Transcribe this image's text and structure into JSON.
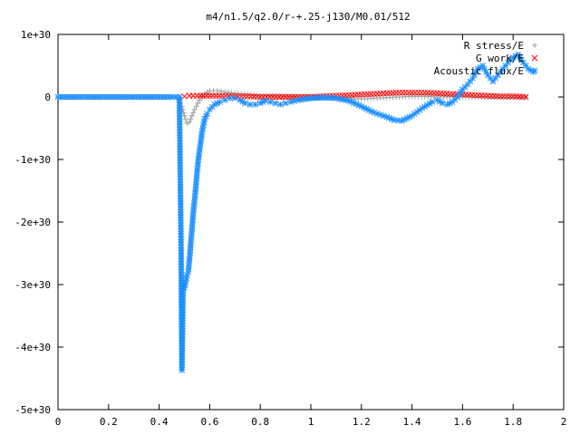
{
  "chart_data": {
    "type": "scatter",
    "title": "m4/n1.5/q2.0/r-+.25-j130/M0.01/512",
    "xlabel": "",
    "ylabel": "",
    "xlim": [
      0,
      2
    ],
    "ylim": [
      -5e+30,
      1e+30
    ],
    "xticks": [
      "0",
      "0.2",
      "0.4",
      "0.6",
      "0.8",
      "1",
      "1.2",
      "1.4",
      "1.6",
      "1.8",
      "2"
    ],
    "yticks": [
      "1e+30",
      "0",
      "-1e+30",
      "-2e+30",
      "-3e+30",
      "-4e+30",
      "-5e+30"
    ],
    "legend_position": "top-right",
    "grid": false,
    "series": [
      {
        "name": "R stress/E",
        "marker": "+",
        "color": "#a0a0a0",
        "points": [
          [
            0.0,
            0
          ],
          [
            0.1,
            0
          ],
          [
            0.2,
            0
          ],
          [
            0.3,
            0
          ],
          [
            0.4,
            0
          ],
          [
            0.47,
            0
          ],
          [
            0.49,
            -1.5e+29
          ],
          [
            0.5,
            -3e+29
          ],
          [
            0.51,
            -4.2e+29
          ],
          [
            0.52,
            -4e+29
          ],
          [
            0.53,
            -3e+29
          ],
          [
            0.54,
            -2e+29
          ],
          [
            0.56,
            -5e+28
          ],
          [
            0.58,
            5e+28
          ],
          [
            0.6,
            1e+29
          ],
          [
            0.63,
            1e+29
          ],
          [
            0.66,
            8e+28
          ],
          [
            0.7,
            6e+28
          ],
          [
            0.75,
            4e+28
          ],
          [
            0.8,
            2e+28
          ],
          [
            0.85,
            2e+28
          ],
          [
            0.9,
            1e+28
          ],
          [
            0.95,
            0.0
          ],
          [
            1.0,
            0.0
          ],
          [
            1.05,
            -1e+28
          ],
          [
            1.1,
            -2e+28
          ],
          [
            1.15,
            -3e+28
          ],
          [
            1.2,
            -3e+28
          ],
          [
            1.25,
            -2e+28
          ],
          [
            1.3,
            -1e+28
          ],
          [
            1.35,
            0.0
          ],
          [
            1.4,
            1e+28
          ],
          [
            1.45,
            1e+28
          ],
          [
            1.5,
            0.0
          ],
          [
            1.55,
            0.0
          ],
          [
            1.6,
            0.0
          ],
          [
            1.65,
            0.0
          ],
          [
            1.7,
            0.0
          ],
          [
            1.75,
            0.0
          ],
          [
            1.8,
            0.0
          ],
          [
            1.85,
            0.0
          ]
        ]
      },
      {
        "name": "G work/E",
        "marker": "x",
        "color": "#ff0000",
        "points": [
          [
            0.48,
            0.0
          ],
          [
            0.5,
            1e+28
          ],
          [
            0.52,
            2e+28
          ],
          [
            0.55,
            2e+28
          ],
          [
            0.6,
            2e+28
          ],
          [
            0.65,
            2e+28
          ],
          [
            0.7,
            1e+28
          ],
          [
            0.75,
            1e+28
          ],
          [
            0.8,
            0.0
          ],
          [
            0.85,
            0.0
          ],
          [
            0.9,
            0.0
          ],
          [
            0.95,
            0.0
          ],
          [
            1.0,
            0.0
          ],
          [
            1.05,
            1e+28
          ],
          [
            1.1,
            2e+28
          ],
          [
            1.15,
            3e+28
          ],
          [
            1.2,
            4e+28
          ],
          [
            1.25,
            5e+28
          ],
          [
            1.3,
            6e+28
          ],
          [
            1.35,
            7e+28
          ],
          [
            1.4,
            7e+28
          ],
          [
            1.45,
            7e+28
          ],
          [
            1.5,
            6e+28
          ],
          [
            1.55,
            5e+28
          ],
          [
            1.6,
            4e+28
          ],
          [
            1.65,
            3e+28
          ],
          [
            1.7,
            2e+28
          ],
          [
            1.75,
            1e+28
          ],
          [
            1.8,
            1e+28
          ],
          [
            1.85,
            0.0
          ]
        ]
      },
      {
        "name": "Acoustic flux/E",
        "marker": "*",
        "color": "#1e90ff",
        "points": [
          [
            0.0,
            0
          ],
          [
            0.05,
            0
          ],
          [
            0.1,
            0
          ],
          [
            0.15,
            0
          ],
          [
            0.2,
            0
          ],
          [
            0.25,
            0
          ],
          [
            0.3,
            0
          ],
          [
            0.35,
            0
          ],
          [
            0.4,
            0
          ],
          [
            0.45,
            0
          ],
          [
            0.48,
            0
          ],
          [
            0.487,
            -2.5e+30
          ],
          [
            0.49,
            -4.37e+30
          ],
          [
            0.495,
            -3e+30
          ],
          [
            0.5,
            -3.05e+30
          ],
          [
            0.505,
            -2.95e+30
          ],
          [
            0.51,
            -2.85e+30
          ],
          [
            0.515,
            -2.8e+30
          ],
          [
            0.52,
            -2.6e+30
          ],
          [
            0.525,
            -2.35e+30
          ],
          [
            0.53,
            -2.1e+30
          ],
          [
            0.535,
            -1.85e+30
          ],
          [
            0.54,
            -1.65e+30
          ],
          [
            0.545,
            -1.45e+30
          ],
          [
            0.55,
            -1.2e+30
          ],
          [
            0.555,
            -1e+30
          ],
          [
            0.56,
            -8.5e+29
          ],
          [
            0.565,
            -7e+29
          ],
          [
            0.57,
            -5.5e+29
          ],
          [
            0.575,
            -4.5e+29
          ],
          [
            0.58,
            -3.5e+29
          ],
          [
            0.59,
            -2.7e+29
          ],
          [
            0.6,
            -2e+29
          ],
          [
            0.62,
            -1.2e+29
          ],
          [
            0.64,
            -8e+28
          ],
          [
            0.66,
            -5e+28
          ],
          [
            0.68,
            -2e+28
          ],
          [
            0.7,
            -2e+28
          ],
          [
            0.72,
            -5e+28
          ],
          [
            0.74,
            -1e+29
          ],
          [
            0.76,
            -1.2e+29
          ],
          [
            0.78,
            -1.2e+29
          ],
          [
            0.8,
            -1e+29
          ],
          [
            0.82,
            -6e+28
          ],
          [
            0.84,
            -8e+28
          ],
          [
            0.86,
            -1e+29
          ],
          [
            0.88,
            -1.2e+29
          ],
          [
            0.9,
            -1e+29
          ],
          [
            0.92,
            -8e+28
          ],
          [
            0.95,
            -5e+28
          ],
          [
            1.0,
            -2e+28
          ],
          [
            1.05,
            -1e+28
          ],
          [
            1.1,
            -2e+28
          ],
          [
            1.15,
            -6e+28
          ],
          [
            1.2,
            -1.5e+29
          ],
          [
            1.25,
            -2.5e+29
          ],
          [
            1.3,
            -3.2e+29
          ],
          [
            1.33,
            -3.7e+29
          ],
          [
            1.36,
            -3.8e+29
          ],
          [
            1.4,
            -3e+29
          ],
          [
            1.44,
            -1.8e+29
          ],
          [
            1.48,
            -8e+28
          ],
          [
            1.5,
            -5e+28
          ],
          [
            1.52,
            -1e+29
          ],
          [
            1.54,
            -1.2e+29
          ],
          [
            1.56,
            -8e+28
          ],
          [
            1.58,
            0.0
          ],
          [
            1.6,
            1.2e+29
          ],
          [
            1.62,
            2e+29
          ],
          [
            1.64,
            3e+29
          ],
          [
            1.66,
            4.5e+29
          ],
          [
            1.68,
            5e+29
          ],
          [
            1.7,
            3.5e+29
          ],
          [
            1.72,
            2.5e+29
          ],
          [
            1.74,
            3.5e+29
          ],
          [
            1.76,
            4.5e+29
          ],
          [
            1.78,
            5.5e+29
          ],
          [
            1.8,
            6.3e+29
          ],
          [
            1.82,
            6.8e+29
          ],
          [
            1.84,
            5.5e+29
          ],
          [
            1.86,
            4.5e+29
          ],
          [
            1.88,
            4e+29
          ]
        ]
      }
    ]
  }
}
